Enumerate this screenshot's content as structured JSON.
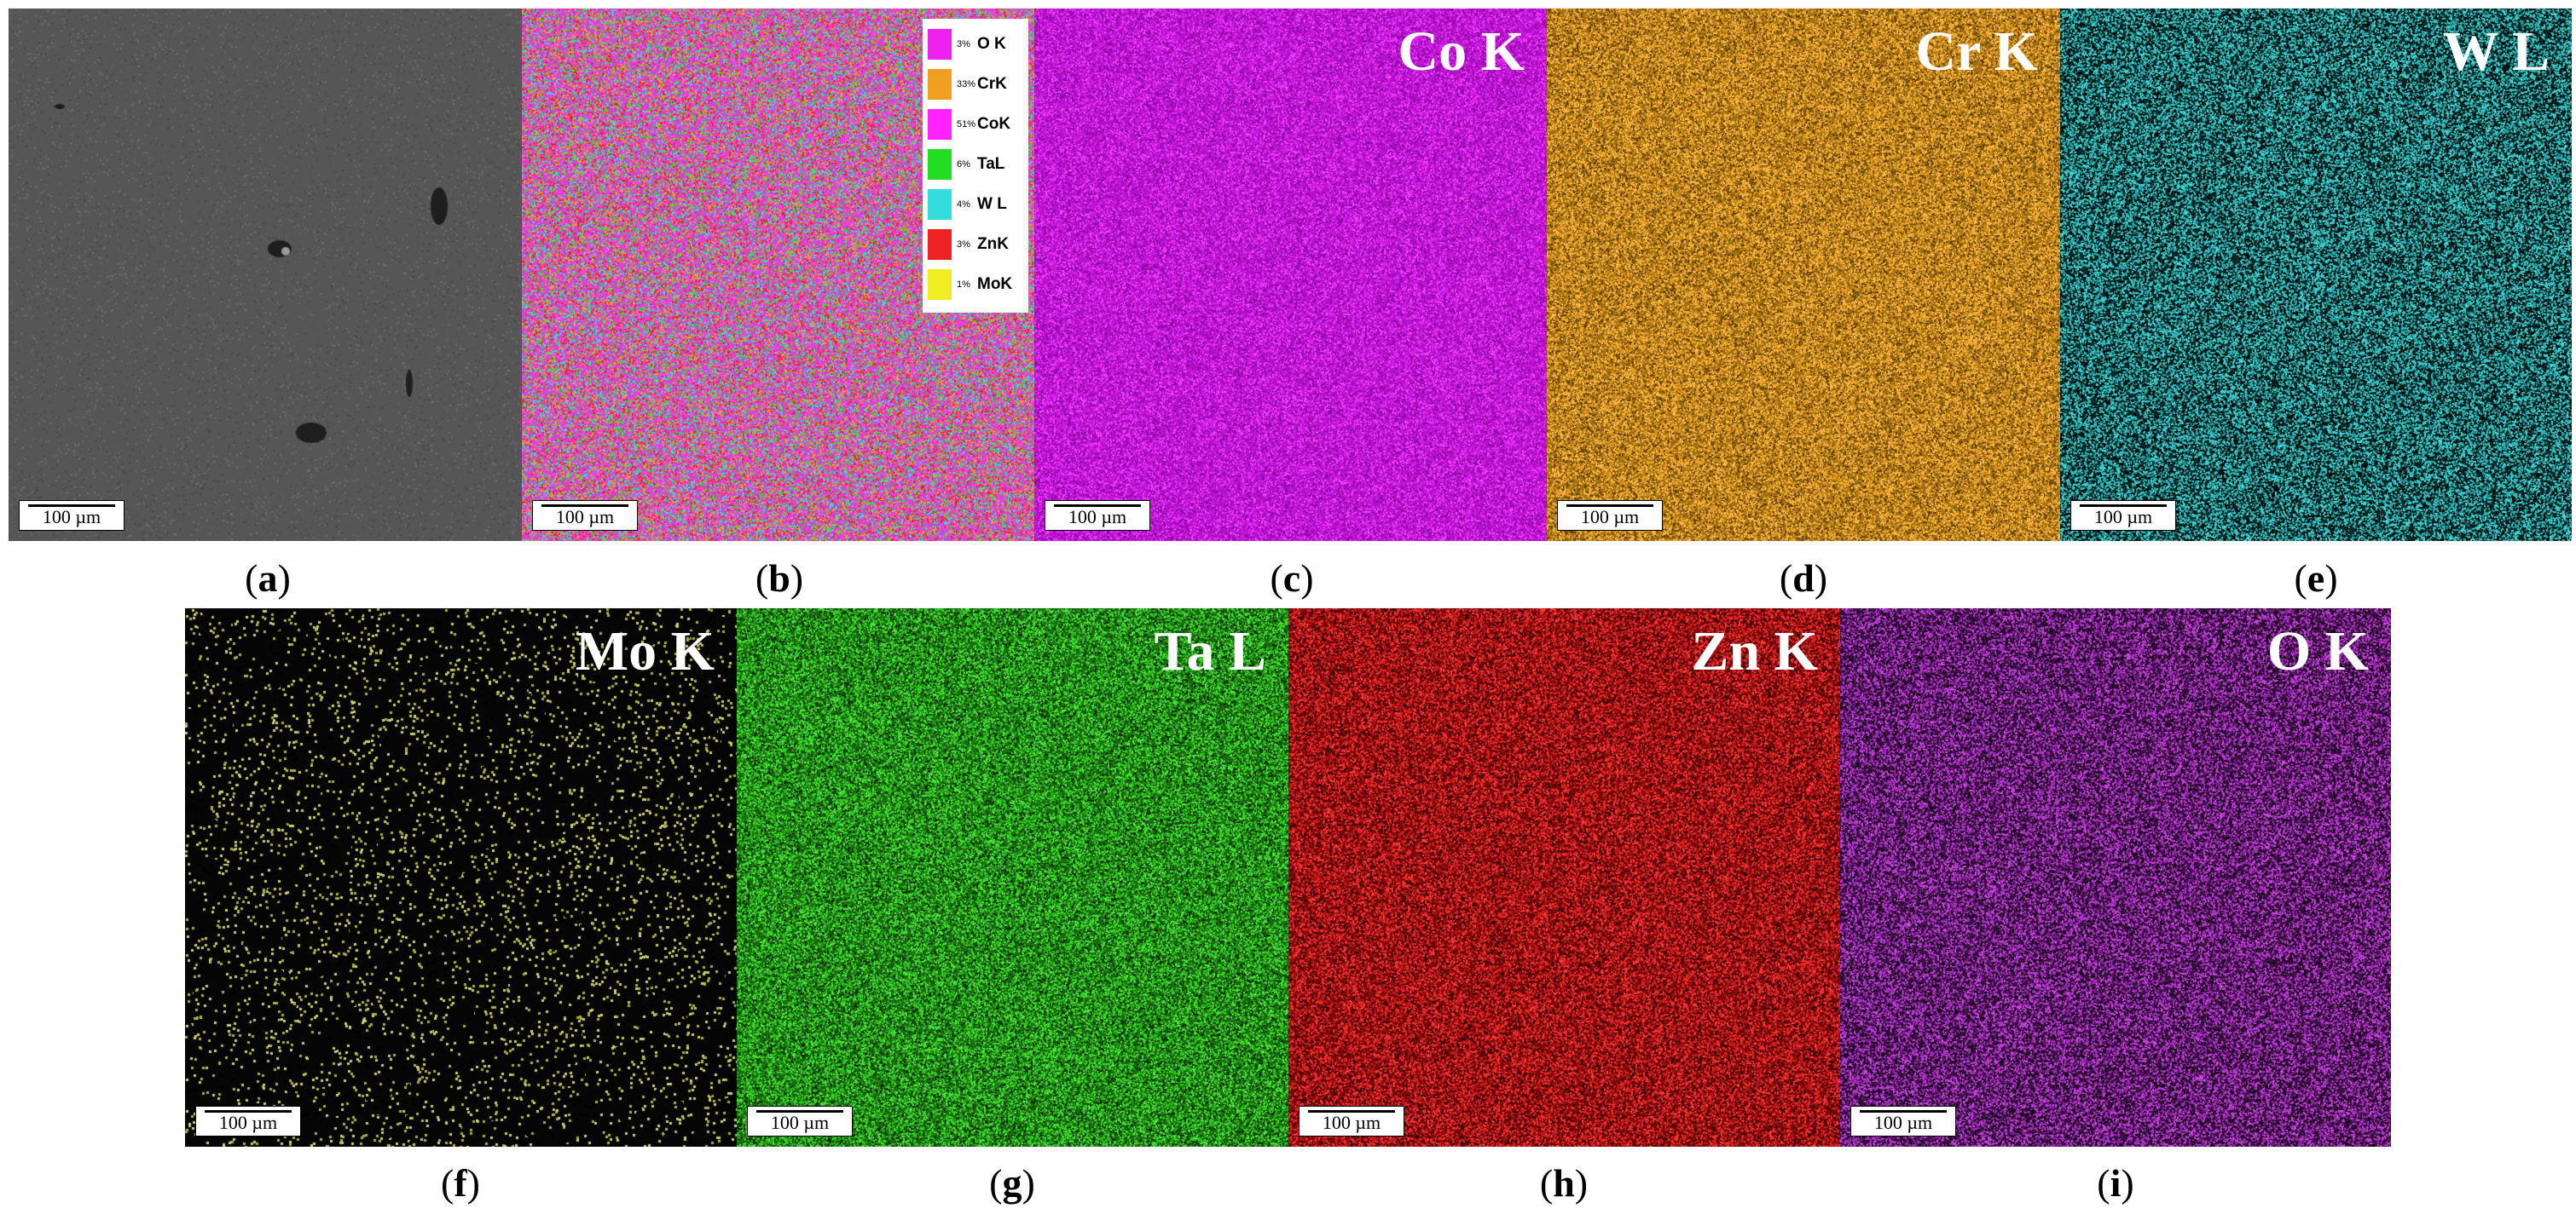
{
  "figure": {
    "scale_bar": "100 µm",
    "panels": [
      {
        "id": "a",
        "caption_letter": "a",
        "element_label": "",
        "base": "#565656",
        "dots": [
          "#6e6e6e",
          "#4a4a4a",
          "#5f5f5f"
        ],
        "type": "sem"
      },
      {
        "id": "b",
        "caption_letter": "b",
        "element_label": "",
        "base": "#c84cc0",
        "dots": [
          "#ff33ff",
          "#f0a020",
          "#ff44dd",
          "#33dd33",
          "#33dddd",
          "#ee2222"
        ],
        "type": "composite"
      },
      {
        "id": "c",
        "caption_letter": "c",
        "element_label": "Co K",
        "base": "#b010c8",
        "dots": [
          "#e020f0",
          "#c818dc",
          "#8a0aa0",
          "#f040ff"
        ],
        "type": "map"
      },
      {
        "id": "d",
        "caption_letter": "d",
        "element_label": "Cr K",
        "base": "#a07010",
        "dots": [
          "#f0a830",
          "#d89020",
          "#604008",
          "#ffbb44"
        ],
        "type": "map"
      },
      {
        "id": "e",
        "caption_letter": "e",
        "element_label": "W L",
        "base": "#0a2a2a",
        "dots": [
          "#30c0c0",
          "#20a0a0",
          "#48d8d8",
          "#000000"
        ],
        "type": "map"
      },
      {
        "id": "f",
        "caption_letter": "f",
        "element_label": "Mo K",
        "base": "#050505",
        "dots": [
          "#b0b040",
          "#d0d070",
          "#000000"
        ],
        "type": "map"
      },
      {
        "id": "g",
        "caption_letter": "g",
        "element_label": "Ta L",
        "base": "#1a6a10",
        "dots": [
          "#30d020",
          "#28b018",
          "#50e840",
          "#0a2a06"
        ],
        "type": "map"
      },
      {
        "id": "h",
        "caption_letter": "h",
        "element_label": "Zn K",
        "base": "#7a0808",
        "dots": [
          "#e02020",
          "#c01818",
          "#ff3838",
          "#300000"
        ],
        "type": "map"
      },
      {
        "id": "i",
        "caption_letter": "i",
        "element_label": "O K",
        "base": "#3a1240",
        "dots": [
          "#b030c8",
          "#9020a8",
          "#c848e0",
          "#100014"
        ],
        "type": "map"
      }
    ],
    "legend": [
      {
        "pct": "3%",
        "element": "O K",
        "color": "#ee22ee"
      },
      {
        "pct": "33%",
        "element": "CrK",
        "color": "#f0a020"
      },
      {
        "pct": "51%",
        "element": "CoK",
        "color": "#ff22ff"
      },
      {
        "pct": "6%",
        "element": "TaL",
        "color": "#22dd22"
      },
      {
        "pct": "4%",
        "element": "W L",
        "color": "#33dddd"
      },
      {
        "pct": "3%",
        "element": "ZnK",
        "color": "#ee2222"
      },
      {
        "pct": "1%",
        "element": "MoK",
        "color": "#eeee22"
      }
    ]
  }
}
